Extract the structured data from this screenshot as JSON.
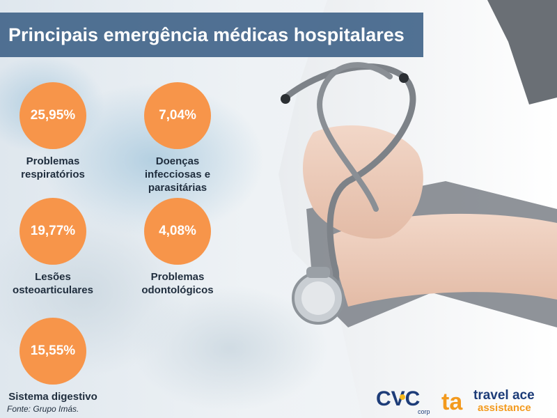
{
  "title": "Principais emergência médicas hospitalares",
  "stats": [
    {
      "value": "25,95%",
      "label_lines": [
        "Problemas",
        "respiratórios"
      ]
    },
    {
      "value": "7,04%",
      "label_lines": [
        "Doenças",
        "infecciosas e",
        "parasitárias"
      ]
    },
    {
      "value": "19,77%",
      "label_lines": [
        "Lesões",
        "osteoarticulares"
      ]
    },
    {
      "value": "4,08%",
      "label_lines": [
        "Problemas",
        "odontológicos"
      ]
    },
    {
      "value": "15,55%",
      "label_lines": [
        "Sistema digestivo"
      ]
    }
  ],
  "source": "Fonte: Grupo Imás.",
  "logos": {
    "cvc": "CVC",
    "cvc_sub": "corp",
    "ta_mark": "ta",
    "travel_ace": "travel ace",
    "assistance": "assistance"
  },
  "colors": {
    "circle": "#f7954a",
    "title_bar": "#42658a",
    "cvc_blue": "#1d3c78",
    "cvc_yellow": "#f6b81a",
    "ta_orange": "#f39a1e"
  }
}
